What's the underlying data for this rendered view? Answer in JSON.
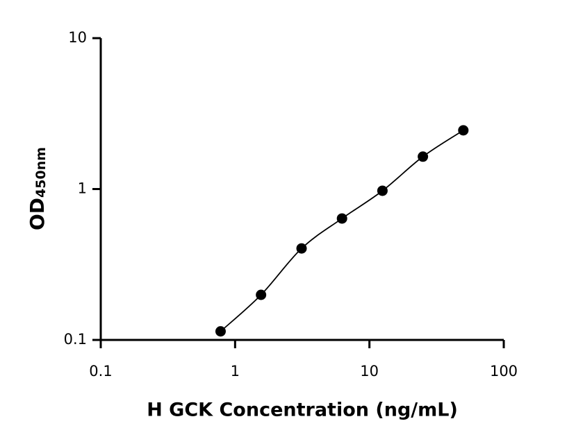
{
  "chart_data": {
    "type": "scatter",
    "x_label": "H GCK Concentration (ng/mL)",
    "y_label": "OD",
    "y_label_subscript": "450nm",
    "x": [
      0.78,
      1.56,
      3.125,
      6.25,
      12.5,
      25,
      50
    ],
    "series": [
      {
        "color": "#000000",
        "values": [
          0.114,
          0.199,
          0.404,
          0.638,
          0.974,
          1.64,
          2.45
        ]
      }
    ],
    "fit_line": true,
    "xscale": "log",
    "yscale": "log",
    "xlim": [
      0.1,
      100
    ],
    "ylim": [
      0.1,
      10
    ],
    "xticks": [
      0.1,
      1,
      10,
      100
    ],
    "yticks": [
      0.1,
      1,
      10
    ]
  }
}
